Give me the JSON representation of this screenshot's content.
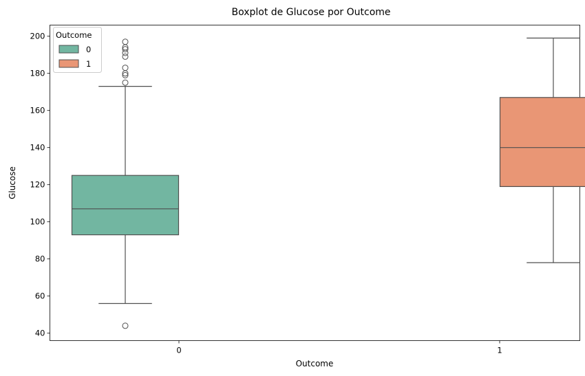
{
  "chart_data": {
    "type": "boxplot",
    "title": "Boxplot de Glucose por Outcome",
    "xlabel": "Outcome",
    "ylabel": "Glucose",
    "categories": [
      "0",
      "1"
    ],
    "ylim": [
      36,
      206
    ],
    "yticks": [
      40,
      60,
      80,
      100,
      120,
      140,
      160,
      180,
      200
    ],
    "grid": false,
    "legend": {
      "title": "Outcome",
      "placement": "top-left",
      "entries": [
        {
          "label": "0",
          "color": "#72b6a1"
        },
        {
          "label": "1",
          "color": "#e99675"
        }
      ]
    },
    "series": [
      {
        "name": "0",
        "category": "0",
        "color": "#72b6a1",
        "whisker_low": 56,
        "q1": 93,
        "median": 107,
        "q3": 125,
        "whisker_high": 173,
        "outliers": [
          44,
          175,
          179,
          180,
          183,
          189,
          191,
          193,
          194,
          197
        ]
      },
      {
        "name": "1",
        "category": "1",
        "color": "#e99675",
        "whisker_low": 78,
        "q1": 119,
        "median": 140,
        "q3": 167,
        "whisker_high": 199,
        "outliers": []
      }
    ]
  }
}
